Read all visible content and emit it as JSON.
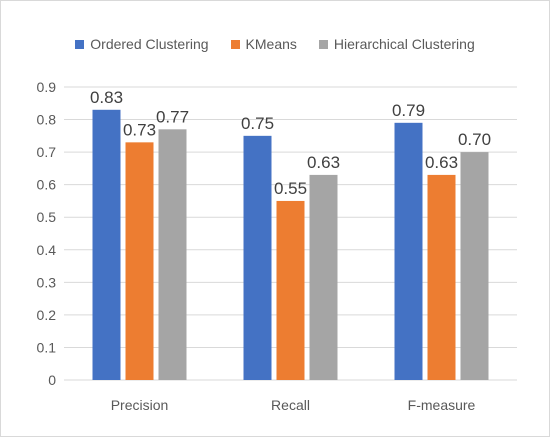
{
  "chart_data": {
    "type": "bar",
    "categories": [
      "Precision",
      "Recall",
      "F-measure"
    ],
    "series": [
      {
        "name": "Ordered Clustering",
        "values": [
          0.83,
          0.75,
          0.79
        ],
        "labels": [
          "0.83",
          "0.75",
          "0.79"
        ],
        "color": "#4472C4"
      },
      {
        "name": "KMeans",
        "values": [
          0.73,
          0.55,
          0.63
        ],
        "labels": [
          "0.73",
          "0.55",
          "0.63"
        ],
        "color": "#ED7D31"
      },
      {
        "name": "Hierarchical Clustering",
        "values": [
          0.77,
          0.63,
          0.7
        ],
        "labels": [
          "0.77",
          "0.63",
          "0.70"
        ],
        "color": "#A5A5A5"
      }
    ],
    "yticks": [
      "0",
      "0.1",
      "0.2",
      "0.3",
      "0.4",
      "0.5",
      "0.6",
      "0.7",
      "0.8",
      "0.9"
    ],
    "ylim": [
      0,
      0.9
    ],
    "grid": true,
    "legend": "top"
  }
}
